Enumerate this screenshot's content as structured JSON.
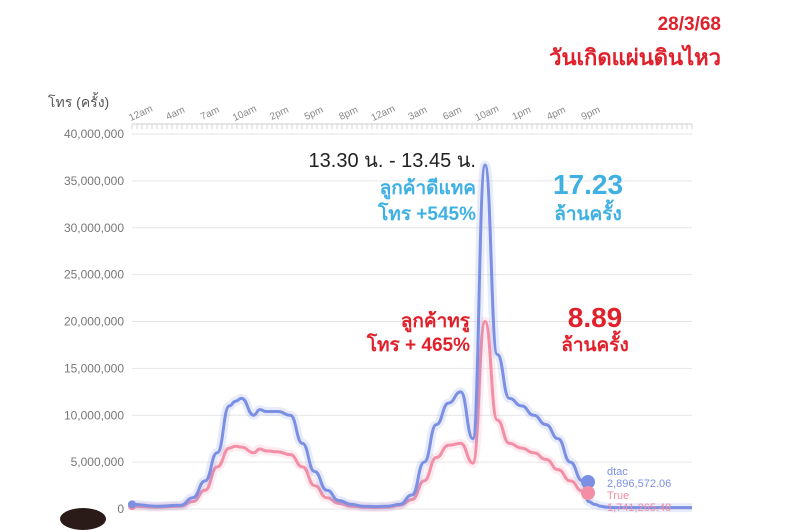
{
  "header": {
    "date": "28/3/68",
    "headline": "วันเกิดแผ่นดินไหว"
  },
  "chart_data": {
    "type": "line",
    "ylabel": "โทร (ครั้ง)",
    "ylim": [
      0,
      40000000
    ],
    "yticks": [
      "0",
      "5,000,000",
      "10,000,000",
      "15,000,000",
      "20,000,000",
      "25,000,000",
      "30,000,000",
      "35,000,000",
      "40,000,000"
    ],
    "x_tick_labels": [
      "12am",
      "4am",
      "7am",
      "10am",
      "2pm",
      "5pm",
      "8pm",
      "12am",
      "3am",
      "6am",
      "10am",
      "1pm",
      "4pm",
      "9pm"
    ],
    "xlim": [
      0,
      46
    ],
    "grid": "horizontal",
    "colors": {
      "dtac": "#7b8fe3",
      "true": "#f28fa6",
      "accent_blue": "#3fb0e3",
      "accent_red": "#e0202a"
    },
    "series": [
      {
        "name": "dtac",
        "x": [
          0,
          2,
          4,
          5,
          6,
          7,
          8,
          8.5,
          9,
          10,
          10.5,
          11,
          12,
          13,
          14,
          15,
          16,
          17,
          18,
          19,
          20,
          21,
          22,
          23,
          24,
          25,
          26,
          27,
          28,
          29,
          30,
          31,
          32,
          33,
          34,
          35,
          36,
          37,
          37.5,
          38,
          38.5,
          39,
          39.5,
          40,
          41,
          42,
          43,
          44,
          45,
          46
        ],
        "values": [
          500000,
          300000,
          400000,
          1200000,
          3000000,
          6000000,
          11000000,
          11500000,
          11800000,
          10000000,
          10600000,
          10400000,
          10400000,
          10000000,
          7000000,
          4000000,
          2000000,
          900000,
          500000,
          300000,
          250000,
          300000,
          500000,
          1500000,
          5000000,
          9000000,
          11300000,
          12500000,
          7500000,
          36700000,
          16500000,
          11800000,
          11000000,
          10000000,
          9000000,
          7500000,
          5000000,
          3000000,
          800000,
          500000,
          300000,
          200000,
          150000,
          150000,
          150000,
          150000,
          150000,
          150000,
          150000,
          150000
        ]
      },
      {
        "name": "True",
        "x": [
          0,
          2,
          4,
          5,
          6,
          7,
          8,
          8.5,
          9,
          10,
          10.5,
          11,
          12,
          13,
          14,
          15,
          16,
          17,
          18,
          19,
          20,
          21,
          22,
          23,
          24,
          25,
          26,
          27,
          28,
          29,
          30,
          31,
          32,
          33,
          34,
          35,
          36,
          37
        ],
        "values": [
          300000,
          200000,
          300000,
          800000,
          2000000,
          4500000,
          6500000,
          6700000,
          6600000,
          6000000,
          6400000,
          6200000,
          6100000,
          5800000,
          4500000,
          2500000,
          1200000,
          600000,
          300000,
          200000,
          150000,
          200000,
          400000,
          1000000,
          3000000,
          5500000,
          6800000,
          7000000,
          4900000,
          20000000,
          9500000,
          7000000,
          6500000,
          6000000,
          5300000,
          4200000,
          3000000,
          1900000
        ]
      }
    ],
    "annotations": {
      "time_range": "13.30 น. - 13.45 น.",
      "dtac_customers": "ลูกค้าดีแทค",
      "dtac_increase": "โทร +545%",
      "dtac_count": "17.23",
      "dtac_unit": "ล้านครั้ง",
      "true_customers": "ลูกค้าทรู",
      "true_increase": "โทร + 465%",
      "true_count": "8.89",
      "true_unit": "ล้านครั้ง"
    },
    "end_labels": {
      "dtac_name": "dtac",
      "dtac_value": "2,896,572.06",
      "true_name": "True",
      "true_value": "1,741,265.48"
    }
  }
}
